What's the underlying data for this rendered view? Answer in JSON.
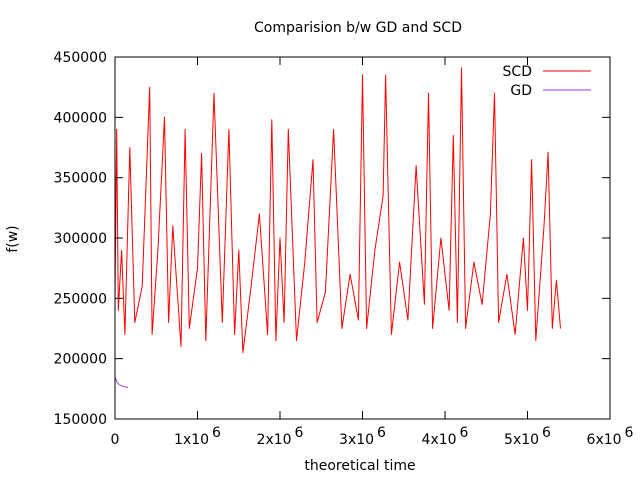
{
  "chart_data": {
    "type": "line",
    "title": "Comparision b/w GD and SCD",
    "xlabel": "theoretical time",
    "ylabel": "f(w)",
    "xlim": [
      0,
      6000000
    ],
    "ylim": [
      150000,
      450000
    ],
    "grid": false,
    "legend_position": "top-right",
    "xticks": [
      {
        "value": 0,
        "label": "0",
        "sup": ""
      },
      {
        "value": 1000000,
        "label": "1x10",
        "sup": "6"
      },
      {
        "value": 2000000,
        "label": "2x10",
        "sup": "6"
      },
      {
        "value": 3000000,
        "label": "3x10",
        "sup": "6"
      },
      {
        "value": 4000000,
        "label": "4x10",
        "sup": "6"
      },
      {
        "value": 5000000,
        "label": "5x10",
        "sup": "6"
      },
      {
        "value": 6000000,
        "label": "6x10",
        "sup": "6"
      }
    ],
    "yticks": [
      {
        "value": 150000,
        "label": "150000"
      },
      {
        "value": 200000,
        "label": "200000"
      },
      {
        "value": 250000,
        "label": "250000"
      },
      {
        "value": 300000,
        "label": "300000"
      },
      {
        "value": 350000,
        "label": "350000"
      },
      {
        "value": 400000,
        "label": "400000"
      },
      {
        "value": 450000,
        "label": "450000"
      }
    ],
    "series": [
      {
        "name": "SCD",
        "color": "#ff0000",
        "x": [
          0,
          20000,
          40000,
          80000,
          120000,
          180000,
          240000,
          330000,
          420000,
          450000,
          520000,
          600000,
          650000,
          700000,
          800000,
          850000,
          900000,
          1000000,
          1050000,
          1100000,
          1200000,
          1300000,
          1380000,
          1450000,
          1500000,
          1550000,
          1650000,
          1750000,
          1850000,
          1900000,
          1950000,
          2000000,
          2050000,
          2100000,
          2200000,
          2300000,
          2400000,
          2450000,
          2550000,
          2650000,
          2750000,
          2850000,
          2950000,
          3000000,
          3050000,
          3150000,
          3250000,
          3280000,
          3350000,
          3450000,
          3550000,
          3650000,
          3750000,
          3800000,
          3850000,
          3950000,
          4050000,
          4100000,
          4150000,
          4200000,
          4250000,
          4350000,
          4450000,
          4550000,
          4600000,
          4650000,
          4750000,
          4850000,
          4950000,
          5000000,
          5050000,
          5100000,
          5200000,
          5250000,
          5300000,
          5350000,
          5400000
        ],
        "y": [
          250000,
          390000,
          240000,
          290000,
          220000,
          375000,
          230000,
          260000,
          425000,
          220000,
          290000,
          400000,
          230000,
          310000,
          210000,
          390000,
          225000,
          275000,
          370000,
          215000,
          420000,
          230000,
          390000,
          220000,
          290000,
          205000,
          260000,
          320000,
          220000,
          398000,
          215000,
          300000,
          230000,
          390000,
          215000,
          280000,
          365000,
          230000,
          255000,
          390000,
          225000,
          270000,
          232000,
          435000,
          225000,
          290000,
          335000,
          435000,
          220000,
          280000,
          232000,
          360000,
          245000,
          420000,
          225000,
          300000,
          240000,
          385000,
          230000,
          441000,
          225000,
          280000,
          245000,
          320000,
          420000,
          230000,
          270000,
          220000,
          300000,
          240000,
          365000,
          215000,
          310000,
          371000,
          225000,
          265000,
          225000
        ]
      },
      {
        "name": "GD",
        "color": "#a040e0",
        "x": [
          0,
          20000,
          50000,
          100000,
          160000
        ],
        "y": [
          185000,
          181000,
          178500,
          177000,
          176000
        ]
      }
    ]
  }
}
